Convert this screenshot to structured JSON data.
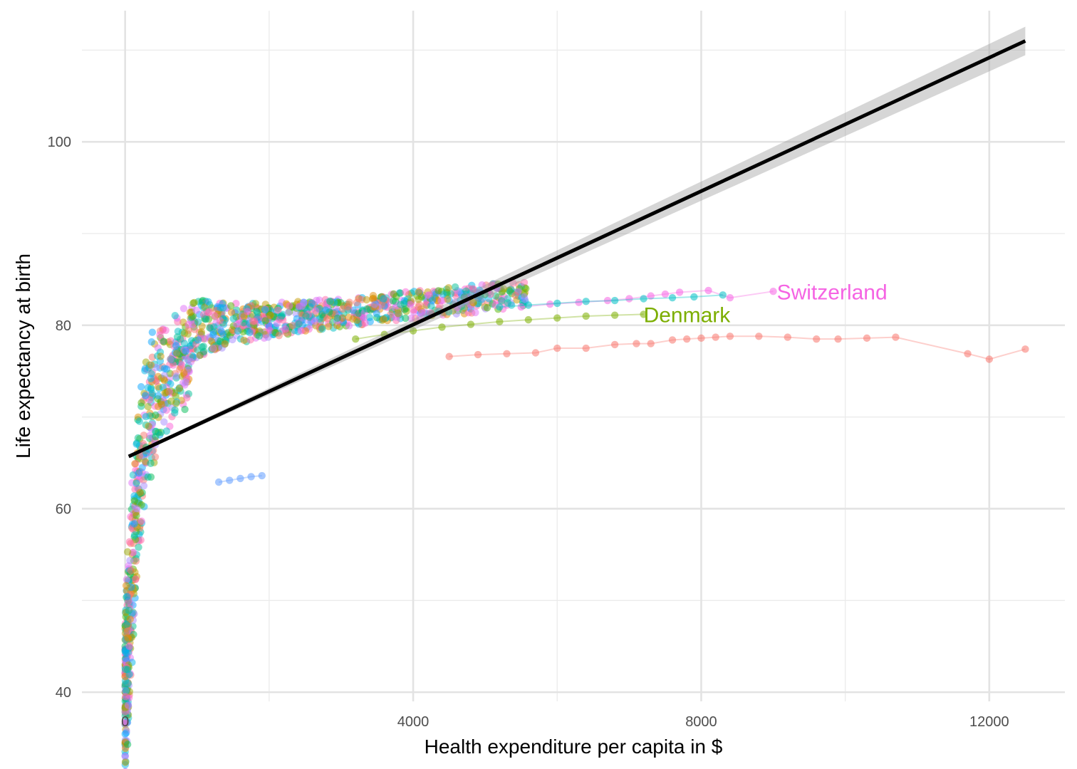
{
  "chart_data": {
    "type": "scatter",
    "title": "",
    "xlabel": "Health expenditure per capita in $",
    "ylabel": "Life expectancy at birth",
    "xlim": [
      -600,
      13050
    ],
    "ylim": [
      39,
      114.3
    ],
    "x_ticks": [
      0,
      4000,
      8000,
      12000
    ],
    "x_tick_labels": [
      "0",
      "4000",
      "8000",
      "12000"
    ],
    "y_ticks": [
      40,
      60,
      80,
      100
    ],
    "y_tick_labels": [
      "40",
      "60",
      "80",
      "100"
    ],
    "grid": true,
    "legend": "none",
    "series": [
      {
        "color": "#F8766D",
        "x": [
          4500,
          4900,
          5300,
          5700,
          6000,
          6400,
          6800,
          7100,
          7300,
          7600,
          7800,
          8000,
          8200,
          8400,
          8800,
          9200,
          9600,
          9900,
          10300,
          10700,
          11700,
          12000,
          12500
        ],
        "y": [
          76.6,
          76.8,
          76.9,
          77.0,
          77.5,
          77.5,
          77.9,
          78.0,
          78.0,
          78.4,
          78.5,
          78.6,
          78.7,
          78.8,
          78.8,
          78.7,
          78.5,
          78.5,
          78.6,
          78.7,
          76.9,
          76.3,
          77.4
        ]
      },
      {
        "color": "#F564E3",
        "x": [
          5500,
          5900,
          6300,
          6700,
          7000,
          7300,
          7500,
          7700,
          8100,
          8400,
          9000
        ],
        "y": [
          82.0,
          82.3,
          82.5,
          82.7,
          82.9,
          83.2,
          83.4,
          83.6,
          83.8,
          83.0,
          83.7
        ]
      },
      {
        "color": "#7CAE00",
        "x": [
          3200,
          3600,
          4000,
          4400,
          4800,
          5200,
          5600,
          6000,
          6400,
          6800,
          7200
        ],
        "y": [
          78.5,
          79.0,
          79.4,
          79.8,
          80.1,
          80.4,
          80.6,
          80.8,
          81.0,
          81.1,
          81.2
        ]
      },
      {
        "color": "#00BFC4",
        "x": [
          5200,
          5600,
          6000,
          6400,
          6800,
          7200,
          7600,
          7900,
          8300
        ],
        "y": [
          82.0,
          82.2,
          82.4,
          82.6,
          82.7,
          82.9,
          83.0,
          83.1,
          83.3
        ]
      },
      {
        "color": "#619CFF",
        "x": [
          1300,
          1450,
          1600,
          1750,
          1900
        ],
        "y": [
          62.9,
          63.1,
          63.3,
          63.5,
          63.6
        ]
      }
    ],
    "trend_line": {
      "color": "#000000",
      "x": [
        50,
        12500
      ],
      "y": [
        65.7,
        111.0
      ]
    },
    "annotations": [
      {
        "text": "Switzerland",
        "x": 9050,
        "y": 83.6,
        "color": "#F564E3"
      },
      {
        "text": "Denmark",
        "x": 7200,
        "y": 81.1,
        "color": "#7CAE00"
      }
    ]
  }
}
